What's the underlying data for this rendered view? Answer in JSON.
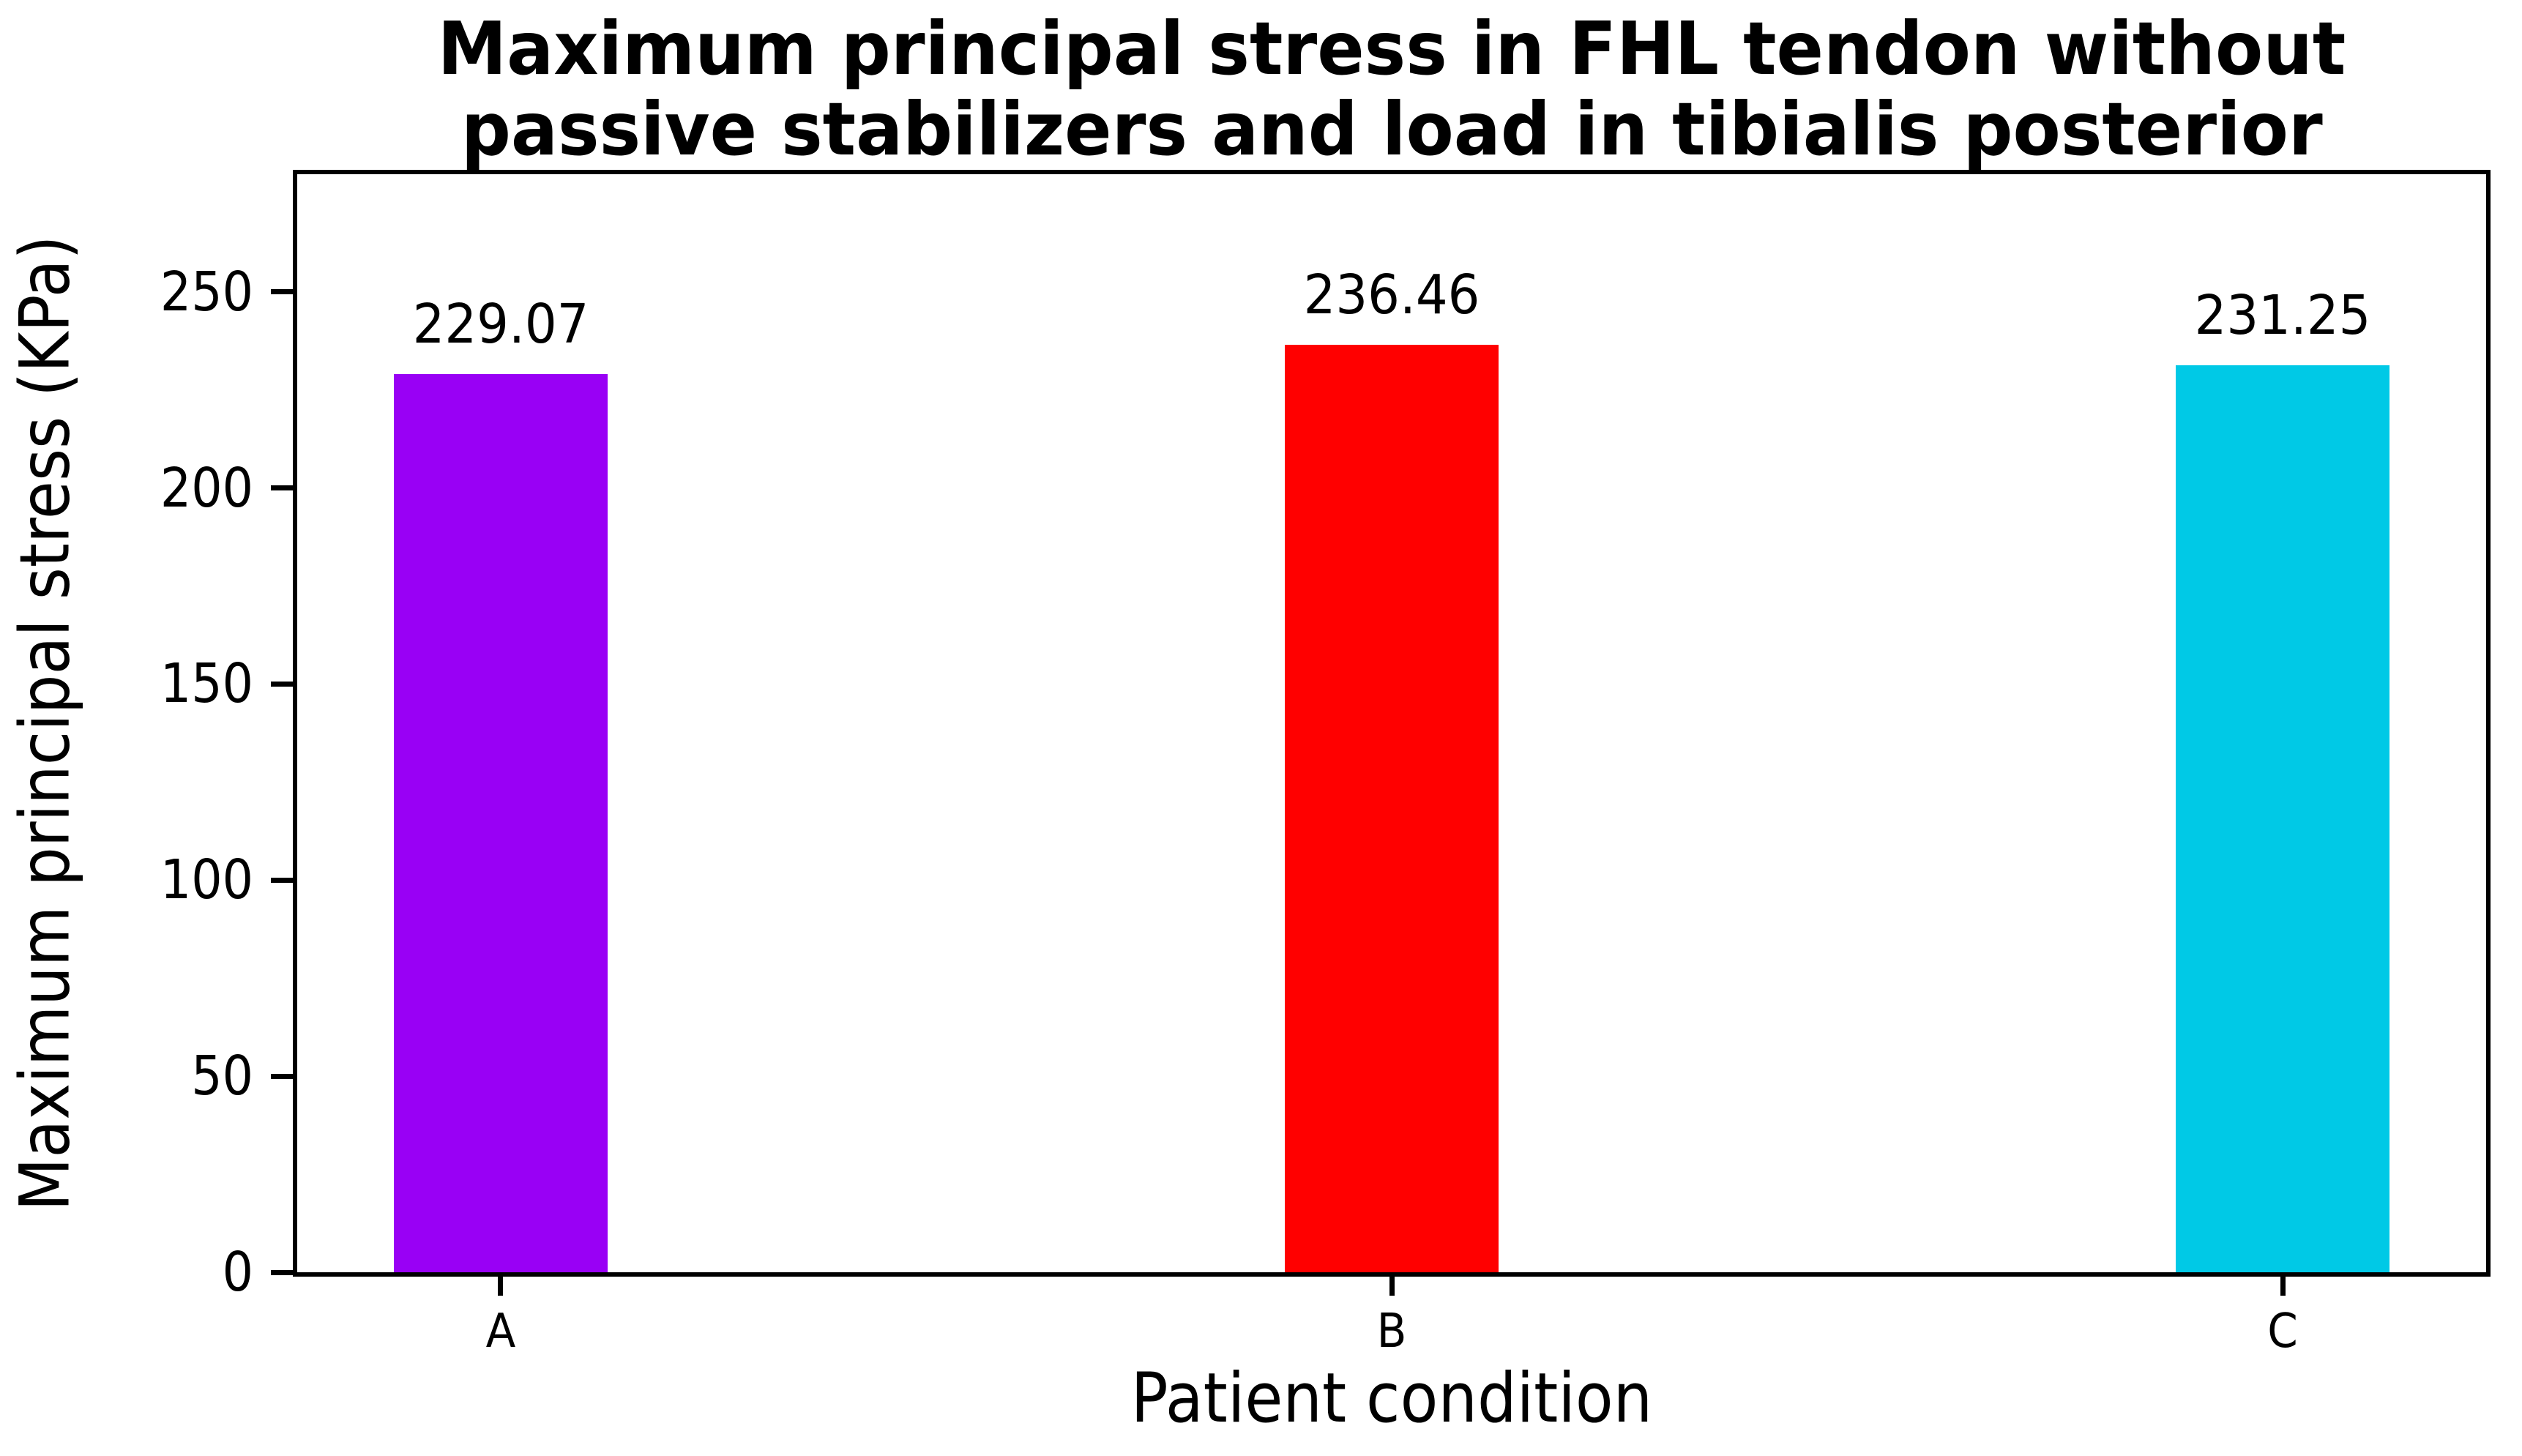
{
  "figure": {
    "title_line1": "Maximum principal stress in FHL tendon without",
    "title_line2": "passive stabilizers and load in tibialis posterior"
  },
  "chart_data": {
    "type": "bar",
    "title": "Maximum principal stress in FHL tendon without passive stabilizers and load in tibialis posterior",
    "xlabel": "Patient condition",
    "ylabel": "Maximum principal stress (KPa)",
    "categories": [
      "A",
      "B",
      "C"
    ],
    "values": [
      229.07,
      236.46,
      231.25
    ],
    "value_labels": [
      "229.07",
      "236.46",
      "231.25"
    ],
    "bar_colors": [
      "#9900F5",
      "#FF0000",
      "#00C9E6"
    ],
    "yticks": [
      0,
      50,
      100,
      150,
      200,
      250
    ],
    "ylim": [
      0,
      280
    ],
    "grid": false,
    "legend": null,
    "background_color": "#FFFFFF",
    "axis_color": "#000000",
    "text_color": "#000000"
  }
}
